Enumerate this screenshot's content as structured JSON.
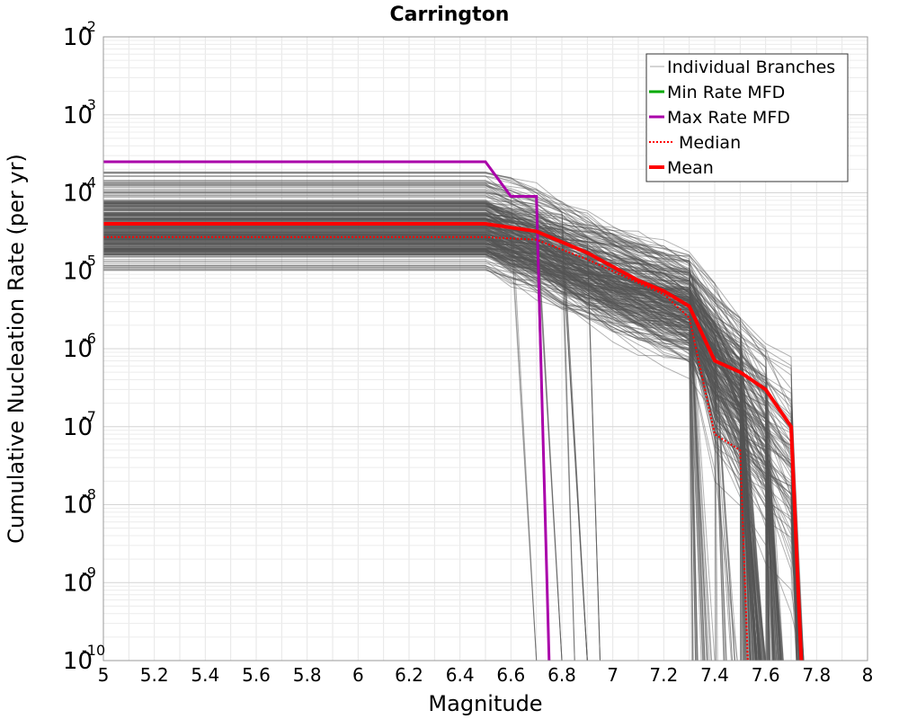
{
  "chart_data": {
    "type": "line",
    "title": "Carrington",
    "xlabel": "Magnitude",
    "ylabel": "Cumulative Nucleation Rate (per yr)",
    "xlim": [
      5,
      8
    ],
    "ylim": [
      1e-10,
      0.01
    ],
    "yscale": "log",
    "grid": true,
    "legend_position": "top-right",
    "x_ticks": [
      "5",
      "5.2",
      "5.4",
      "5.6",
      "5.8",
      "6",
      "6.2",
      "6.4",
      "6.6",
      "6.8",
      "7",
      "7.2",
      "7.4",
      "7.6",
      "7.8",
      "8"
    ],
    "y_ticks": [
      {
        "base": "10",
        "exp": "-10"
      },
      {
        "base": "10",
        "exp": "-9"
      },
      {
        "base": "10",
        "exp": "-8"
      },
      {
        "base": "10",
        "exp": "-7"
      },
      {
        "base": "10",
        "exp": "-6"
      },
      {
        "base": "10",
        "exp": "-5"
      },
      {
        "base": "10",
        "exp": "-4"
      },
      {
        "base": "10",
        "exp": "-3"
      },
      {
        "base": "10",
        "exp": "-2"
      }
    ],
    "series": [
      {
        "name": "Min Rate MFD",
        "color": "#00aa00",
        "style": "solid",
        "points": []
      },
      {
        "name": "Max Rate MFD",
        "color": "#aa00aa",
        "style": "solid",
        "points": [
          [
            5,
            0.00025
          ],
          [
            6.5,
            0.00025
          ],
          [
            6.6,
            9e-05
          ],
          [
            6.7,
            9e-05
          ],
          [
            6.75,
            1e-10
          ]
        ]
      },
      {
        "name": "Median",
        "color": "#ff0000",
        "style": "dotted",
        "points": [
          [
            5,
            2.7e-05
          ],
          [
            6.5,
            2.7e-05
          ],
          [
            6.7,
            2.5e-05
          ],
          [
            6.9,
            1.4e-05
          ],
          [
            7.1,
            7e-06
          ],
          [
            7.2,
            5e-06
          ],
          [
            7.3,
            2.5e-06
          ],
          [
            7.4,
            8e-08
          ],
          [
            7.5,
            5e-08
          ],
          [
            7.53,
            1e-10
          ]
        ]
      },
      {
        "name": "Mean",
        "color": "#ff0000",
        "style": "solid",
        "points": [
          [
            5,
            4e-05
          ],
          [
            6.5,
            4e-05
          ],
          [
            6.7,
            3.2e-05
          ],
          [
            6.9,
            1.7e-05
          ],
          [
            7.1,
            7.5e-06
          ],
          [
            7.2,
            5.5e-06
          ],
          [
            7.3,
            3.5e-06
          ],
          [
            7.4,
            7e-07
          ],
          [
            7.5,
            5e-07
          ],
          [
            7.6,
            3e-07
          ],
          [
            7.7,
            1e-07
          ],
          [
            7.74,
            1e-10
          ]
        ]
      }
    ],
    "branches": {
      "name": "Individual Branches",
      "color": "#555555",
      "count": 340
    }
  }
}
